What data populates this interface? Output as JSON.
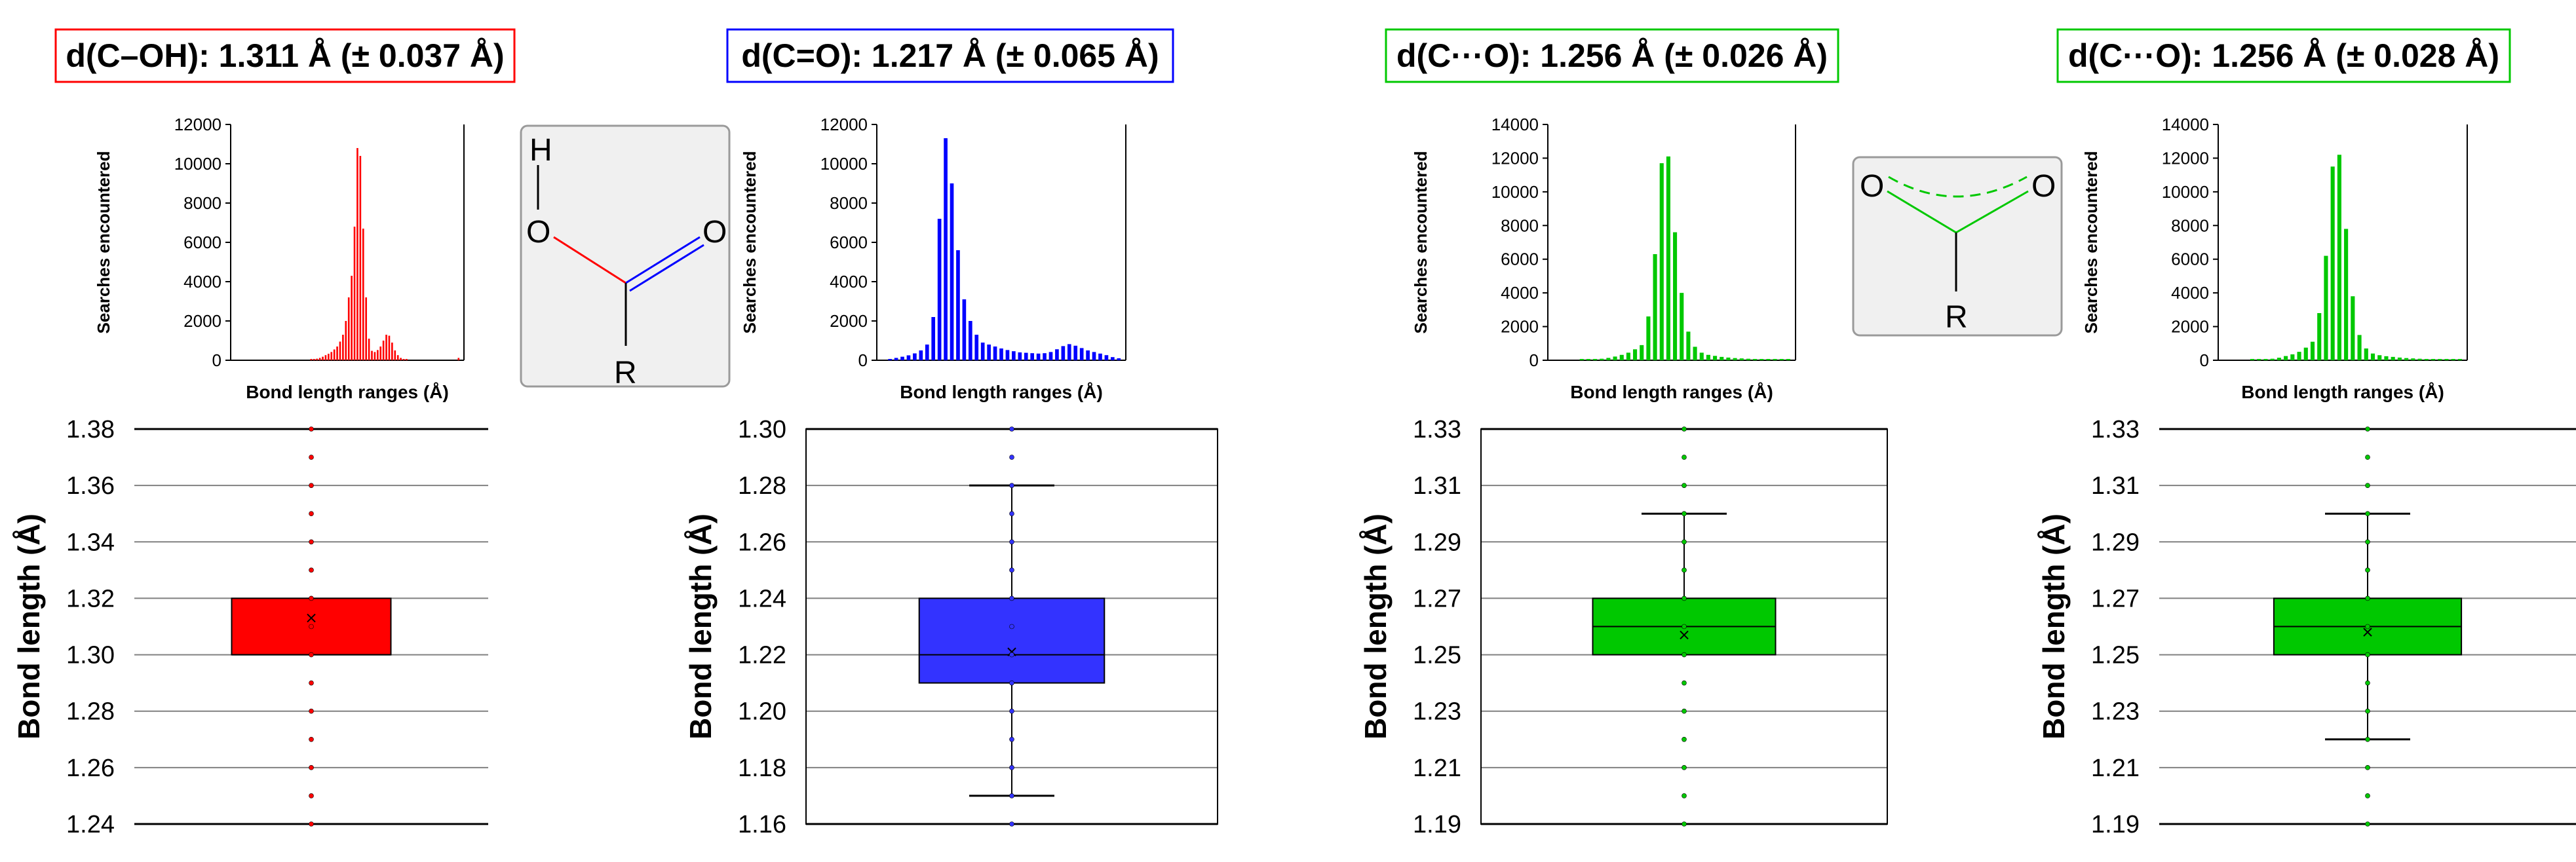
{
  "chart_data": [
    {
      "type": "bar",
      "title": "d(C–OH): 1.311 Å (± 0.037 Å)",
      "color": "#ff0000",
      "xlabel": "Bond length ranges (Å)",
      "ylabel": "Searches encountered",
      "yticks": [
        0,
        2000,
        4000,
        6000,
        8000,
        10000,
        12000
      ],
      "ylim": [
        0,
        12000
      ],
      "values": [
        0,
        0,
        0,
        0,
        0,
        0,
        0,
        0,
        0,
        0,
        0,
        0,
        0,
        0,
        0,
        0,
        0,
        0,
        0,
        0,
        0,
        0,
        0,
        0,
        0,
        0,
        30,
        60,
        80,
        120,
        180,
        260,
        330,
        420,
        550,
        700,
        950,
        1300,
        2000,
        3200,
        4300,
        6800,
        10800,
        10400,
        6700,
        3200,
        1100,
        480,
        420,
        520,
        700,
        1000,
        1300,
        1250,
        900,
        500,
        260,
        120,
        60,
        30,
        0,
        0,
        0,
        0,
        0,
        0,
        0,
        0,
        0,
        0,
        0,
        0,
        0,
        0,
        0,
        0,
        0,
        120
      ]
    },
    {
      "type": "bar",
      "title": "d(C=O): 1.217 Å (± 0.065 Å)",
      "color": "#0000ff",
      "xlabel": "Bond length ranges (Å)",
      "ylabel": "Searches encountered",
      "yticks": [
        0,
        2000,
        4000,
        6000,
        8000,
        10000,
        12000
      ],
      "ylim": [
        0,
        12000
      ],
      "values": [
        0,
        60,
        120,
        180,
        250,
        350,
        500,
        800,
        2200,
        7200,
        11300,
        9000,
        5600,
        3100,
        2000,
        1300,
        900,
        800,
        700,
        600,
        520,
        460,
        400,
        380,
        360,
        340,
        360,
        420,
        560,
        720,
        820,
        740,
        620,
        500,
        420,
        340,
        260,
        160,
        100
      ]
    },
    {
      "type": "bar",
      "title": "d(C···O): 1.256 Å (± 0.026 Å)",
      "color": "#00c800",
      "xlabel": "Bond length ranges (Å)",
      "ylabel": "Searches encountered",
      "yticks": [
        0,
        2000,
        4000,
        6000,
        8000,
        10000,
        12000,
        14000
      ],
      "ylim": [
        0,
        14000
      ],
      "values": [
        0,
        0,
        0,
        0,
        20,
        40,
        60,
        90,
        140,
        220,
        320,
        450,
        650,
        900,
        2600,
        6300,
        11700,
        12100,
        7600,
        4000,
        1700,
        800,
        450,
        320,
        260,
        200,
        160,
        130,
        110,
        90,
        70,
        60,
        50,
        40,
        30,
        20
      ]
    },
    {
      "type": "bar",
      "title": "d(C···O): 1.256 Å (± 0.028 Å)",
      "color": "#00c800",
      "xlabel": "Bond length ranges (Å)",
      "ylabel": "Searches encountered",
      "yticks": [
        0,
        2000,
        4000,
        6000,
        8000,
        10000,
        12000,
        14000
      ],
      "ylim": [
        0,
        14000
      ],
      "values": [
        0,
        0,
        0,
        0,
        20,
        40,
        60,
        90,
        150,
        250,
        350,
        500,
        750,
        1100,
        2800,
        6200,
        11500,
        12200,
        7800,
        3800,
        1500,
        700,
        400,
        300,
        240,
        200,
        160,
        130,
        110,
        90,
        70,
        60,
        50,
        40,
        30,
        20
      ]
    },
    {
      "type": "box",
      "ylabel": "Bond length (Å)",
      "color": "#ff0000",
      "ylim": [
        1.24,
        1.38
      ],
      "yticks": [
        "1.24",
        "1.26",
        "1.28",
        "1.30",
        "1.32",
        "1.34",
        "1.36",
        "1.38"
      ],
      "q1": 1.3,
      "median": 1.3,
      "q3": 1.32,
      "mean": 1.313,
      "whisker_low": null,
      "whisker_high": null,
      "points": [
        1.24,
        1.25,
        1.26,
        1.27,
        1.28,
        1.29,
        1.3,
        1.31,
        1.32,
        1.33,
        1.34,
        1.35,
        1.36,
        1.37,
        1.38
      ]
    },
    {
      "type": "box",
      "ylabel": "Bond length (Å)",
      "color": "#3333ff",
      "ylim": [
        1.16,
        1.3
      ],
      "yticks": [
        "1.16",
        "1.18",
        "1.20",
        "1.22",
        "1.24",
        "1.26",
        "1.28",
        "1.30"
      ],
      "q1": 1.21,
      "median": 1.22,
      "q3": 1.24,
      "mean": 1.221,
      "whisker_low": 1.17,
      "whisker_high": 1.28,
      "points": [
        1.16,
        1.17,
        1.18,
        1.19,
        1.2,
        1.21,
        1.22,
        1.23,
        1.24,
        1.25,
        1.26,
        1.27,
        1.28,
        1.29,
        1.3
      ]
    },
    {
      "type": "box",
      "ylabel": "Bond length (Å)",
      "color": "#00c800",
      "ylim": [
        1.19,
        1.33
      ],
      "yticks": [
        "1.19",
        "1.21",
        "1.23",
        "1.25",
        "1.27",
        "1.29",
        "1.31",
        "1.33"
      ],
      "q1": 1.25,
      "median": 1.26,
      "q3": 1.27,
      "mean": 1.257,
      "whisker_low": null,
      "whisker_high": 1.3,
      "points": [
        1.19,
        1.2,
        1.21,
        1.22,
        1.23,
        1.24,
        1.25,
        1.26,
        1.27,
        1.28,
        1.29,
        1.3,
        1.31,
        1.32,
        1.33
      ]
    },
    {
      "type": "box",
      "ylabel": "Bond length (Å)",
      "color": "#00c800",
      "ylim": [
        1.19,
        1.33
      ],
      "yticks": [
        "1.19",
        "1.21",
        "1.23",
        "1.25",
        "1.27",
        "1.29",
        "1.31",
        "1.33"
      ],
      "q1": 1.25,
      "median": 1.26,
      "q3": 1.27,
      "mean": 1.258,
      "whisker_low": 1.22,
      "whisker_high": 1.3,
      "points": [
        1.19,
        1.2,
        1.21,
        1.22,
        1.23,
        1.24,
        1.25,
        1.26,
        1.27,
        1.28,
        1.29,
        1.3,
        1.31,
        1.32,
        1.33
      ]
    }
  ],
  "structures": [
    {
      "name": "carboxylic-acid",
      "atoms": [
        "H",
        "O",
        "O",
        "R"
      ]
    },
    {
      "name": "carboxylate",
      "atoms": [
        "O",
        "O",
        "R"
      ]
    }
  ]
}
